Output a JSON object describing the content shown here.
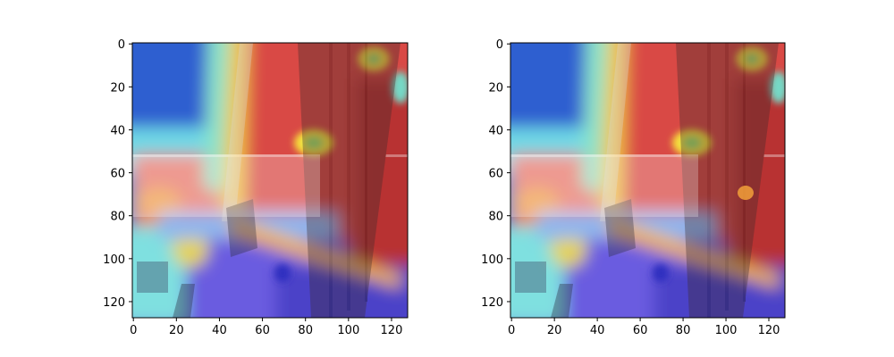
{
  "figure": {
    "panels": [
      {
        "name": "left-heatmap-panel",
        "image": "heatmap-overlay-left",
        "xticks": [
          "0",
          "20",
          "40",
          "60",
          "80",
          "100",
          "120"
        ],
        "yticks": [
          "0",
          "20",
          "40",
          "60",
          "80",
          "100",
          "120"
        ],
        "xlim": [
          -0.5,
          127.5
        ],
        "ylim": [
          127.5,
          -0.5
        ]
      },
      {
        "name": "right-heatmap-panel",
        "image": "heatmap-overlay-right",
        "xticks": [
          "0",
          "20",
          "40",
          "60",
          "80",
          "100",
          "120"
        ],
        "yticks": [
          "0",
          "20",
          "40",
          "60",
          "80",
          "100",
          "120"
        ],
        "xlim": [
          -0.5,
          127.5
        ],
        "ylim": [
          127.5,
          -0.5
        ]
      }
    ],
    "colors": {
      "hot": "#d62828",
      "warm": "#f7d733",
      "mid": "#7ce3d6",
      "cool": "#3b6fd8",
      "cold": "#5a4fd6"
    }
  }
}
